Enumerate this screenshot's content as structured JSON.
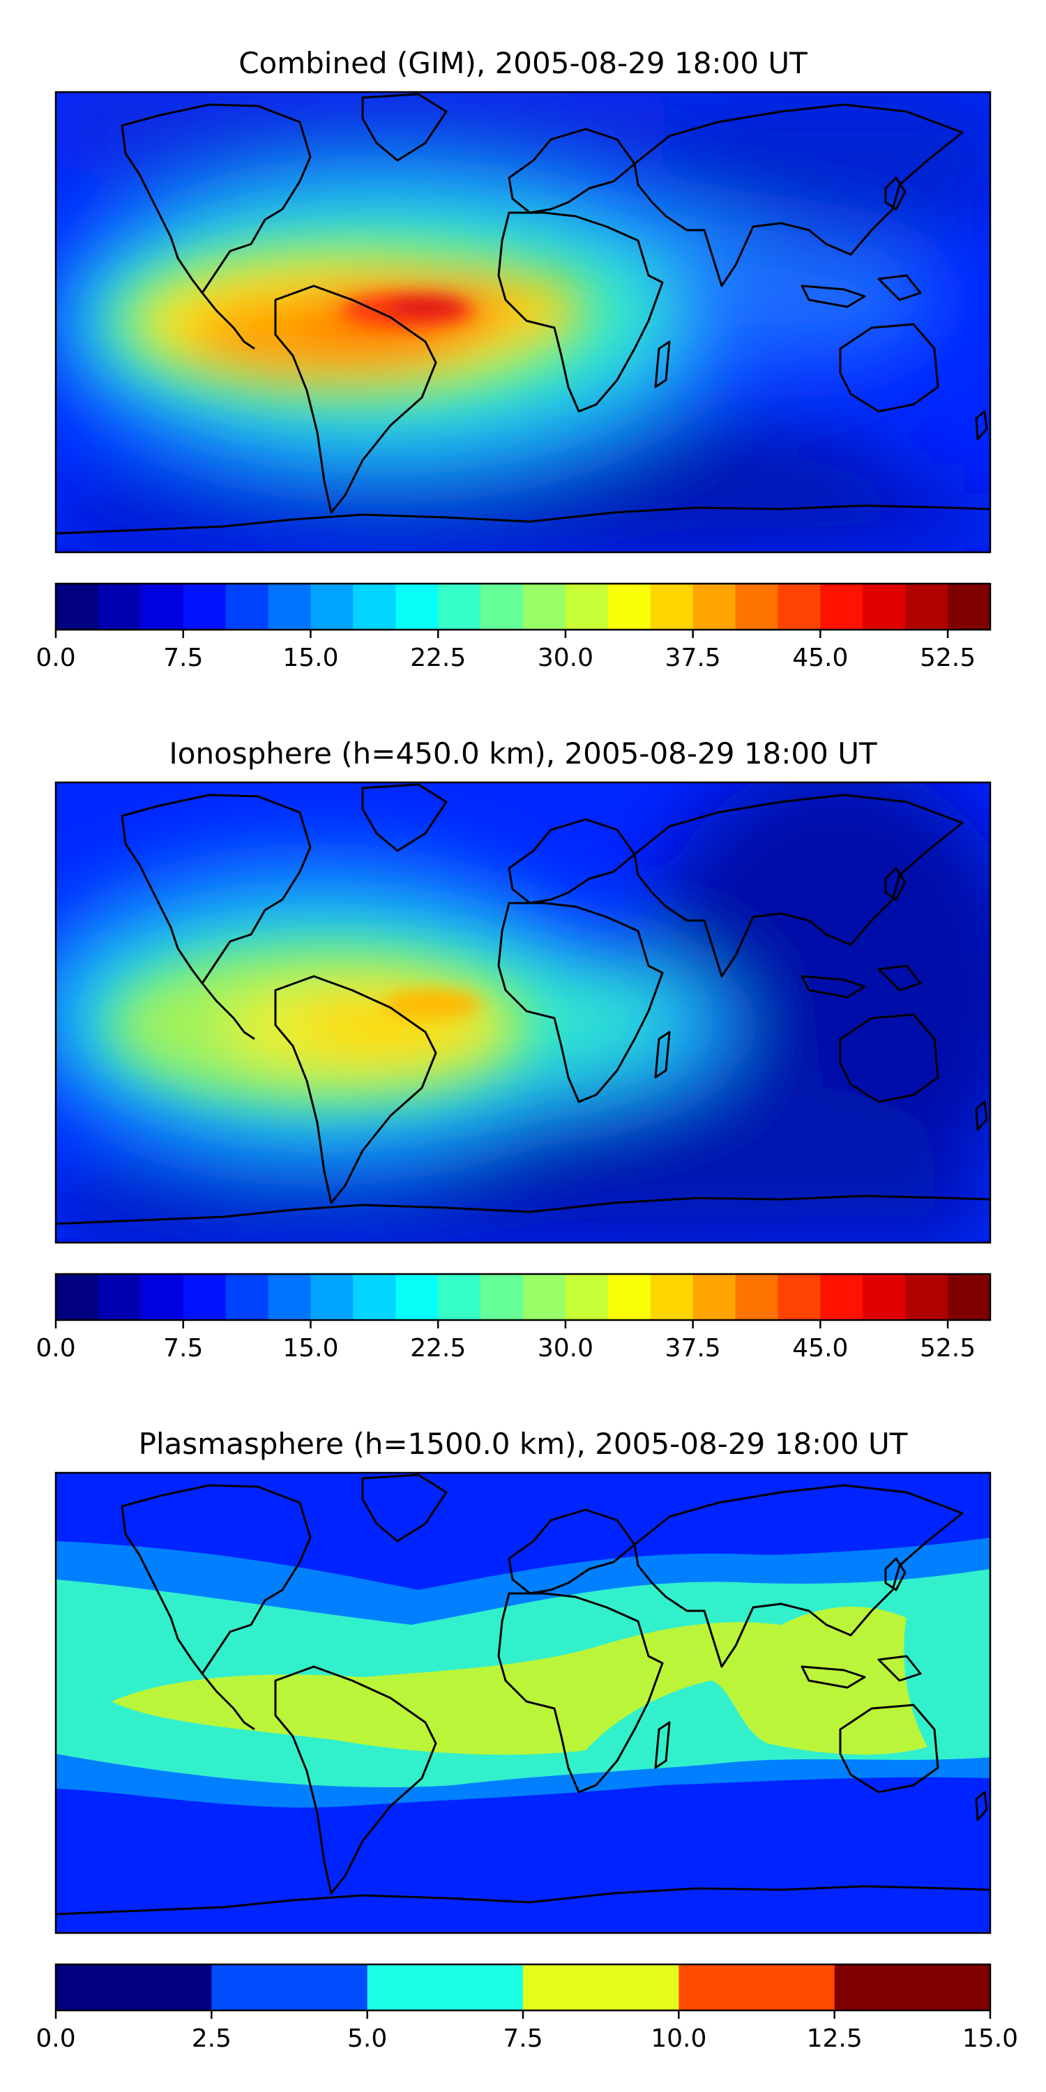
{
  "chart_data": [
    {
      "type": "heatmap",
      "title": "Combined (GIM), 2005-08-29 18:00 UT",
      "map": "world-coastlines",
      "colormap": "jet",
      "colorbar": {
        "min": 0,
        "max": 55,
        "levels": 22,
        "ticks": [
          "0.0",
          "7.5",
          "15.0",
          "22.5",
          "30.0",
          "37.5",
          "45.0",
          "52.5"
        ]
      },
      "features": [
        {
          "lon": -55,
          "lat": 2,
          "value": 50
        },
        {
          "lon": -80,
          "lat": -8,
          "value": 46
        },
        {
          "lon": -115,
          "lat": -5,
          "value": 40
        },
        {
          "lon": -25,
          "lat": 10,
          "value": 38
        },
        {
          "lon": 10,
          "lat": 8,
          "value": 30
        },
        {
          "lon": 40,
          "lat": 5,
          "value": 22
        },
        {
          "lon": 75,
          "lat": 5,
          "value": 17
        },
        {
          "lon": 120,
          "lat": 0,
          "value": 14
        }
      ]
    },
    {
      "type": "heatmap",
      "title": "Ionosphere  (h=450.0 km), 2005-08-29 18:00 UT",
      "map": "world-coastlines",
      "colormap": "jet",
      "colorbar": {
        "min": 0,
        "max": 55,
        "levels": 22,
        "ticks": [
          "0.0",
          "7.5",
          "15.0",
          "22.5",
          "30.0",
          "37.5",
          "45.0",
          "52.5"
        ]
      },
      "features": [
        {
          "lon": -55,
          "lat": -5,
          "value": 38
        },
        {
          "lon": -80,
          "lat": -12,
          "value": 34
        },
        {
          "lon": -110,
          "lat": -8,
          "value": 30
        },
        {
          "lon": -25,
          "lat": 2,
          "value": 28
        },
        {
          "lon": 10,
          "lat": 0,
          "value": 20
        },
        {
          "lon": 45,
          "lat": 0,
          "value": 13
        },
        {
          "lon": 120,
          "lat": 0,
          "value": 5
        }
      ]
    },
    {
      "type": "heatmap",
      "title": "Plasmasphere (h=1500.0 km), 2005-08-29 18:00 UT",
      "map": "world-coastlines",
      "colormap": "jet",
      "colorbar": {
        "min": 0,
        "max": 15,
        "levels": 6,
        "ticks": [
          "0.0",
          "2.5",
          "5.0",
          "7.5",
          "10.0",
          "12.5",
          "15.0"
        ]
      },
      "features": [
        {
          "lon": -140,
          "lat": 0,
          "value": 8.5
        },
        {
          "lon": -60,
          "lat": -2,
          "value": 8.5
        },
        {
          "lon": 0,
          "lat": 12,
          "value": 8.5
        },
        {
          "lon": 70,
          "lat": 18,
          "value": 8.5
        },
        {
          "lon": 110,
          "lat": -5,
          "value": 8.5
        },
        {
          "lon": 150,
          "lat": -5,
          "value": 8.5
        }
      ]
    }
  ],
  "icons": {
    "coastline": "continent-outline-shape"
  }
}
